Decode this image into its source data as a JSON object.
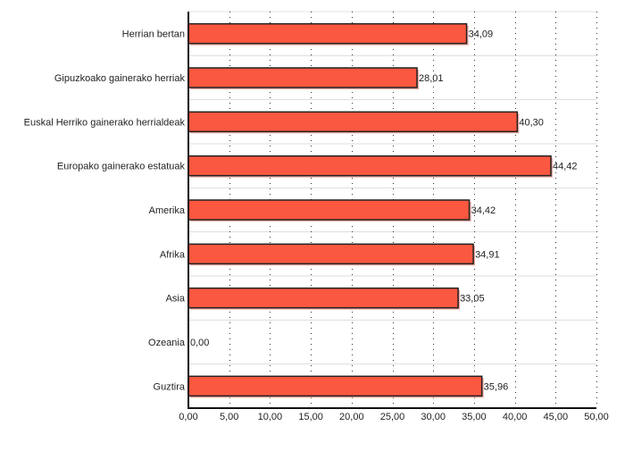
{
  "chart_data": {
    "type": "bar",
    "orientation": "horizontal",
    "title": "",
    "xlabel": "",
    "ylabel": "",
    "categories": [
      "Herrian bertan",
      "Gipuzkoako gainerako herriak",
      "Euskal Herriko gainerako herrialdeak",
      "Europako gainerako estatuak",
      "Amerika",
      "Afrika",
      "Asia",
      "Ozeania",
      "Guztira"
    ],
    "values": [
      34.09,
      28.01,
      40.3,
      44.42,
      34.42,
      34.91,
      33.05,
      0.0,
      35.96
    ],
    "value_labels": [
      "34,09",
      "28,01",
      "40,30",
      "44,42",
      "34,42",
      "34,91",
      "33,05",
      "0,00",
      "35,96"
    ],
    "xlim": [
      0,
      50
    ],
    "x_ticks": [
      0,
      5,
      10,
      15,
      20,
      25,
      30,
      35,
      40,
      45,
      50
    ],
    "x_tick_labels": [
      "0,00",
      "5,00",
      "10,00",
      "15,00",
      "20,00",
      "25,00",
      "30,00",
      "35,00",
      "40,00",
      "45,00",
      "50,00"
    ],
    "grid": true,
    "legend": "none",
    "colors": {
      "bar": "#fa5840",
      "bar_border": "#222222",
      "shadow": "#e8a8a0"
    }
  }
}
